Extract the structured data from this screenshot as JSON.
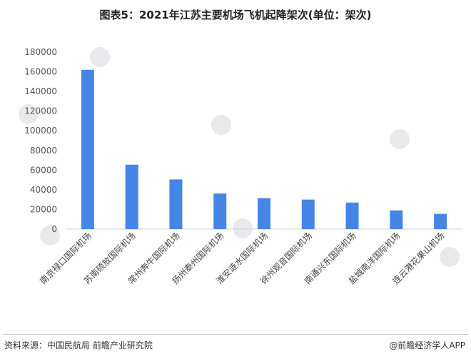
{
  "chart_data": {
    "type": "bar",
    "title": "图表5：2021年江苏主要机场飞机起降架次(单位：架次)",
    "categories": [
      "南京禄口国际机场",
      "苏南硕放国际机场",
      "常州奔牛国际机场",
      "扬州泰州国际机场",
      "淮安涟水国际机场",
      "徐州观音国际机场",
      "南通兴东国际机场",
      "盐城南洋国际机场",
      "连云港花果山机场"
    ],
    "values": [
      162000,
      65500,
      50500,
      36200,
      31500,
      30000,
      27000,
      19000,
      15500
    ],
    "ylim": [
      0,
      180000
    ],
    "yticks": [
      0,
      20000,
      40000,
      60000,
      80000,
      100000,
      120000,
      140000,
      160000,
      180000
    ],
    "grid": false,
    "bar_color": "#4585e6"
  },
  "footer": {
    "source": "资料来源：中国民航局 前瞻产业研究院",
    "brand": "@前瞻经济学人APP"
  },
  "watermark": {
    "text": "前瞻产业研究院"
  }
}
